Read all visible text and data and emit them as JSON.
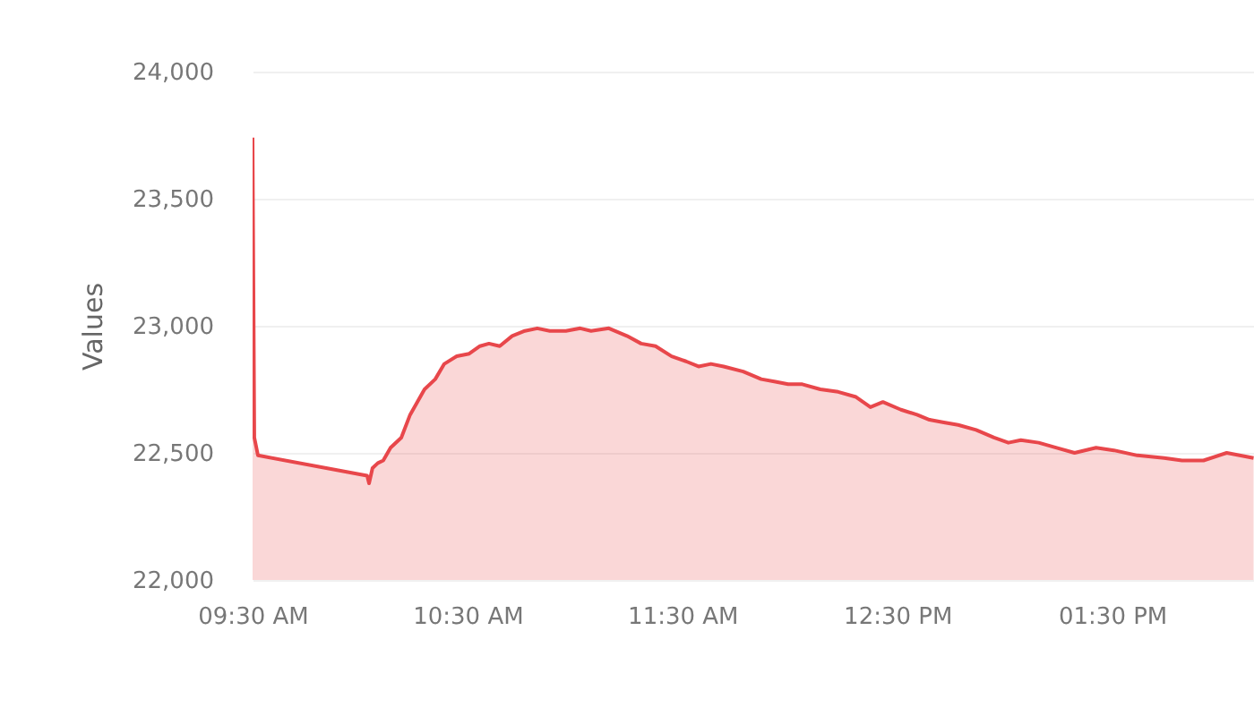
{
  "chart_data": {
    "type": "area",
    "ylabel": "Values",
    "xlim": [
      9.5,
      14.16
    ],
    "ylim": [
      22000,
      24000
    ],
    "xticks": [
      {
        "value": 9.5,
        "label": "09:30 AM"
      },
      {
        "value": 10.5,
        "label": "10:30 AM"
      },
      {
        "value": 11.5,
        "label": "11:30 AM"
      },
      {
        "value": 12.5,
        "label": "12:30 PM"
      },
      {
        "value": 13.5,
        "label": "01:30 PM"
      }
    ],
    "yticks": [
      {
        "value": 22000,
        "label": "22,000"
      },
      {
        "value": 22500,
        "label": "22,500"
      },
      {
        "value": 23000,
        "label": "23,000"
      },
      {
        "value": 23500,
        "label": "23,500"
      },
      {
        "value": 24000,
        "label": "24,000"
      }
    ],
    "grid": "y",
    "series": [
      {
        "color": "#e8474b",
        "x": [
          9.5,
          9.508,
          9.525,
          10.033,
          10.042,
          10.058,
          10.083,
          10.108,
          10.142,
          10.192,
          10.233,
          10.3,
          10.35,
          10.392,
          10.45,
          10.508,
          10.558,
          10.6,
          10.65,
          10.708,
          10.767,
          10.825,
          10.883,
          10.958,
          11.025,
          11.075,
          11.158,
          11.242,
          11.308,
          11.375,
          11.45,
          11.517,
          11.575,
          11.633,
          11.692,
          11.783,
          11.867,
          11.933,
          11.992,
          12.058,
          12.142,
          12.225,
          12.308,
          12.375,
          12.433,
          12.517,
          12.592,
          12.65,
          12.717,
          12.783,
          12.867,
          12.95,
          13.017,
          13.075,
          13.158,
          13.242,
          13.325,
          13.425,
          13.508,
          13.617,
          13.742,
          13.825,
          13.925,
          14.033,
          14.158
        ],
        "values": [
          23740,
          22560,
          22490,
          22410,
          22380,
          22440,
          22460,
          22470,
          22520,
          22560,
          22650,
          22750,
          22790,
          22850,
          22880,
          22890,
          22920,
          22930,
          22920,
          22960,
          22980,
          22990,
          22980,
          22980,
          22990,
          22980,
          22990,
          22960,
          22930,
          22920,
          22880,
          22860,
          22840,
          22850,
          22840,
          22820,
          22790,
          22780,
          22770,
          22770,
          22750,
          22740,
          22720,
          22680,
          22700,
          22670,
          22650,
          22630,
          22620,
          22610,
          22590,
          22560,
          22540,
          22550,
          22540,
          22520,
          22500,
          22520,
          22510,
          22490,
          22480,
          22470,
          22470,
          22500,
          22480
        ]
      }
    ]
  }
}
